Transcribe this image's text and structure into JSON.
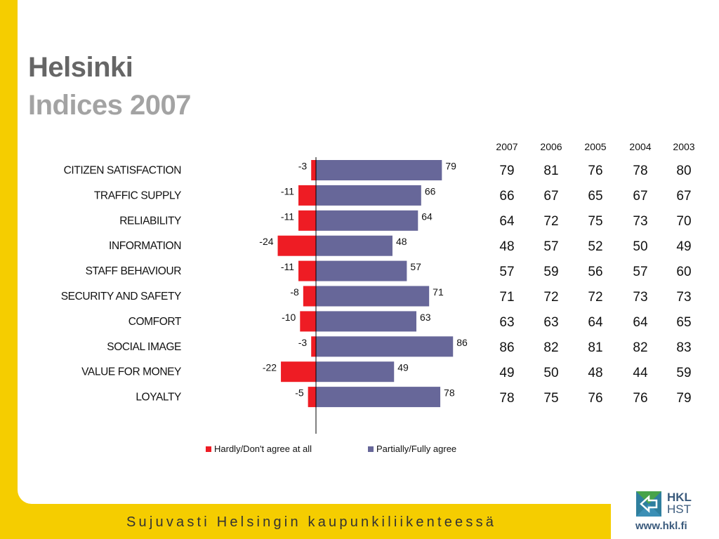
{
  "header": {
    "title": "Helsinki",
    "subtitle": "Indices 2007"
  },
  "colors": {
    "negative": "#ee1c24",
    "positive": "#676799",
    "accent": "#f5cd00",
    "logo": "#3a5a7c"
  },
  "chart_data": {
    "type": "bar",
    "orientation": "horizontal-diverging",
    "categories": [
      "CITIZEN SATISFACTION",
      "TRAFFIC SUPPLY",
      "RELIABILITY",
      "INFORMATION",
      "STAFF BEHAVIOUR",
      "SECURITY AND SAFETY",
      "COMFORT",
      "SOCIAL IMAGE",
      "VALUE FOR MONEY",
      "LOYALTY"
    ],
    "series": [
      {
        "name": "Hardly/Don't agree at all",
        "values": [
          -3,
          -11,
          -11,
          -24,
          -11,
          -8,
          -10,
          -3,
          -22,
          -5
        ]
      },
      {
        "name": "Partially/Fully agree",
        "values": [
          79,
          66,
          64,
          48,
          57,
          71,
          63,
          86,
          49,
          78
        ]
      }
    ],
    "xlim": [
      -27,
      100
    ],
    "legend_position": "bottom"
  },
  "table": {
    "years": [
      "2007",
      "2006",
      "2005",
      "2004",
      "2003"
    ],
    "rows": [
      [
        "79",
        "81",
        "76",
        "78",
        "80"
      ],
      [
        "66",
        "67",
        "65",
        "67",
        "67"
      ],
      [
        "64",
        "72",
        "75",
        "73",
        "70"
      ],
      [
        "48",
        "57",
        "52",
        "50",
        "49"
      ],
      [
        "57",
        "59",
        "56",
        "57",
        "60"
      ],
      [
        "71",
        "72",
        "72",
        "73",
        "73"
      ],
      [
        "63",
        "63",
        "64",
        "64",
        "65"
      ],
      [
        "86",
        "82",
        "81",
        "82",
        "83"
      ],
      [
        "49",
        "50",
        "48",
        "44",
        "59"
      ],
      [
        "78",
        "75",
        "76",
        "76",
        "79"
      ]
    ]
  },
  "footer": {
    "slogan": "Sujuvasti Helsingin kaupunkiliikenteessä"
  },
  "logo": {
    "name_line1": "HKL",
    "name_line2": "HST",
    "url": "www.hkl.fi",
    "icon": "hkl-arrows-icon"
  }
}
